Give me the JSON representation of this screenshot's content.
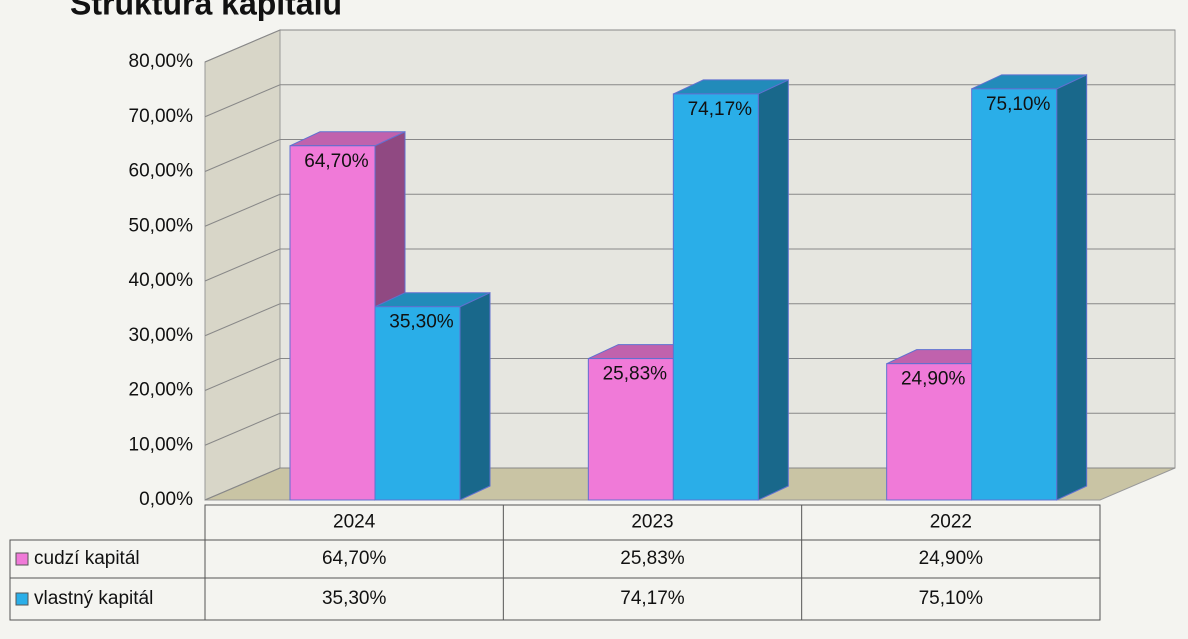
{
  "chart_data": {
    "type": "bar3d",
    "title": "Štruktúra kapitálu",
    "categories": [
      "2024",
      "2023",
      "2022"
    ],
    "series": [
      {
        "name": "cudzí kapitál",
        "color": "#f07ad8",
        "values": [
          64.7,
          25.83,
          24.9
        ],
        "value_labels": [
          "64,70%",
          "25,83%",
          "24,90%"
        ]
      },
      {
        "name": "vlastný kapitál",
        "color": "#2aaee8",
        "values": [
          35.3,
          74.17,
          75.1
        ],
        "value_labels": [
          "35,30%",
          "74,17%",
          "75,10%"
        ]
      }
    ],
    "ylim": [
      0,
      80
    ],
    "yticks": [
      {
        "value": 0,
        "label": "0,00%"
      },
      {
        "value": 10,
        "label": "10,00%"
      },
      {
        "value": 20,
        "label": "20,00%"
      },
      {
        "value": 30,
        "label": "30,00%"
      },
      {
        "value": 40,
        "label": "40,00%"
      },
      {
        "value": 50,
        "label": "50,00%"
      },
      {
        "value": 60,
        "label": "60,00%"
      },
      {
        "value": 70,
        "label": "70,00%"
      },
      {
        "value": 80,
        "label": "80,00%"
      }
    ],
    "grid": true,
    "data_table": true
  }
}
